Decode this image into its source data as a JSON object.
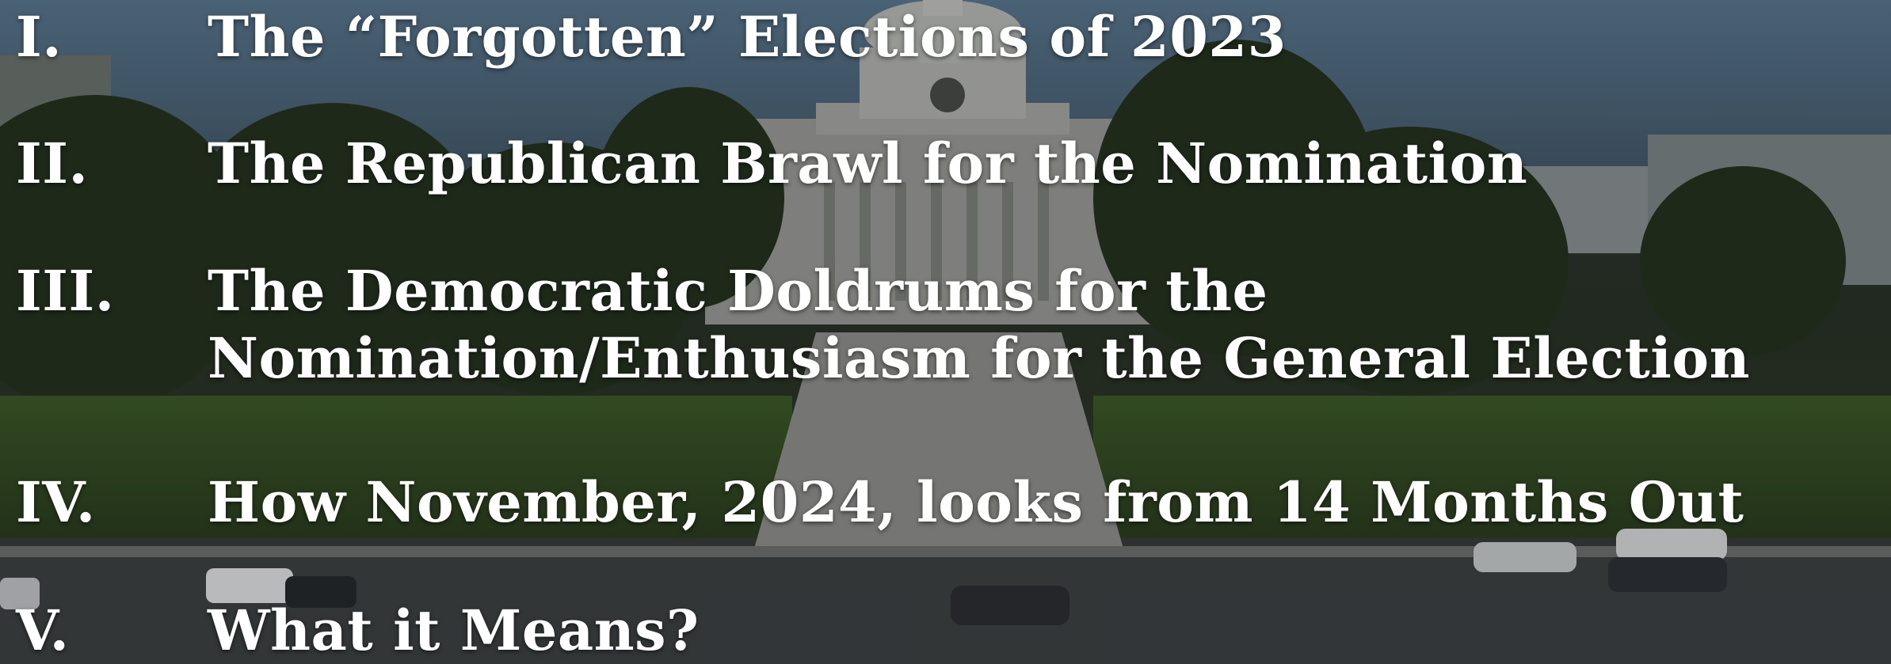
{
  "outline": {
    "items": [
      {
        "numeral": "I.",
        "lines": [
          "The “Forgotten” Elections of 2023"
        ]
      },
      {
        "numeral": "II.",
        "lines": [
          "The Republican Brawl for the Nomination"
        ]
      },
      {
        "numeral": "III.",
        "lines": [
          "The Democratic Doldrums for the",
          "Nomination/Enthusiasm for the General Election"
        ]
      },
      {
        "numeral": "IV.",
        "lines": [
          "How November, 2024, looks from 14 Months Out"
        ]
      },
      {
        "numeral": "V.",
        "lines": [
          "What it Means?"
        ]
      }
    ]
  },
  "colors": {
    "text": "#ffffff",
    "sky": "#4a6378",
    "trees": "#26331f",
    "lawn": "#3f5a2a",
    "capitol": "#8a8d8a"
  },
  "background": {
    "icon": "state-capitol-photo"
  }
}
